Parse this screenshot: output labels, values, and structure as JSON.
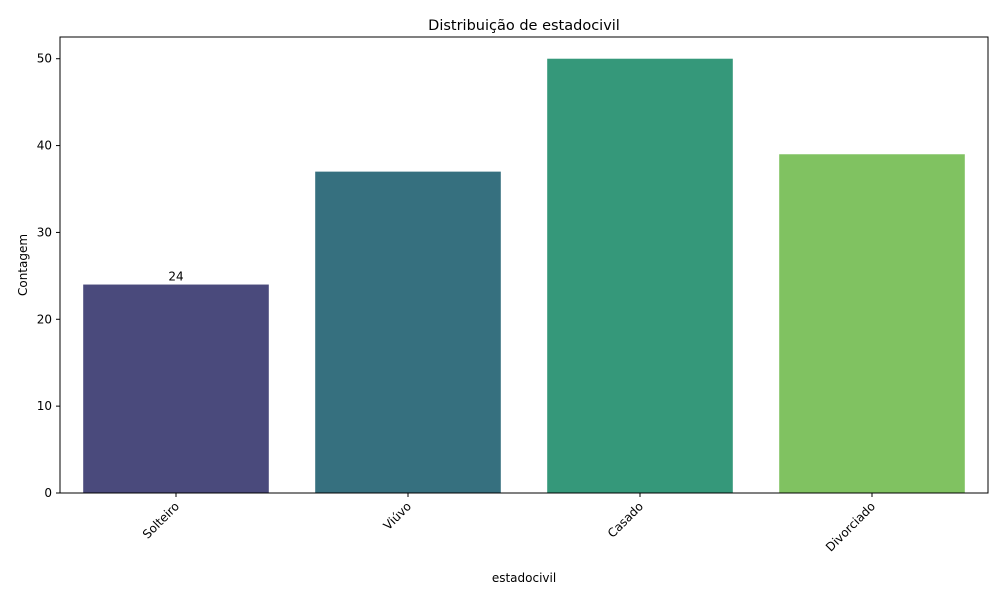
{
  "chart_data": {
    "type": "bar",
    "title": "Distribuição de estadocivil",
    "xlabel": "estadocivil",
    "ylabel": "Contagem",
    "categories": [
      "Solteiro",
      "Viúvo",
      "Casado",
      "Divorciado"
    ],
    "values": [
      24,
      37,
      50,
      39
    ],
    "colors": [
      "#4a4a7c",
      "#36707f",
      "#35987a",
      "#80c261"
    ],
    "ylim": [
      0,
      52.5
    ],
    "yticks": [
      0,
      10,
      20,
      30,
      40,
      50
    ],
    "data_labels": [
      {
        "category": "Solteiro",
        "text": "24"
      }
    ],
    "grid": false,
    "legend": "none",
    "xtick_rotation_deg": 45
  }
}
